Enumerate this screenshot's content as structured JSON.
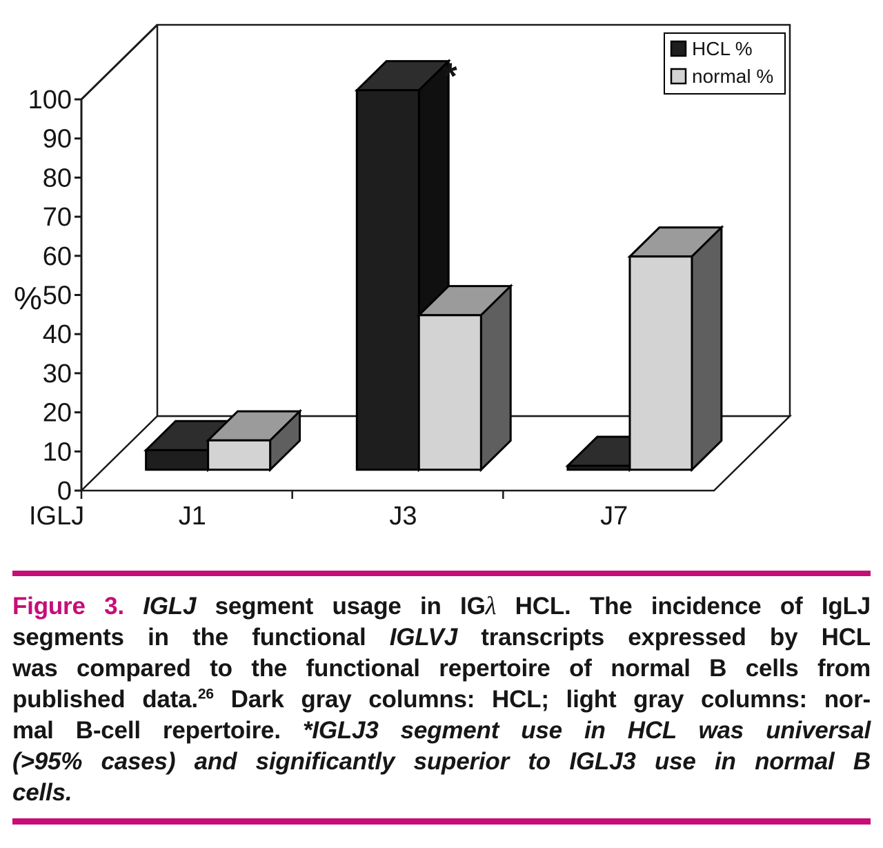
{
  "chart_data": {
    "type": "bar",
    "subtype": "3d-column",
    "title": "",
    "categories": [
      "J1",
      "J3",
      "J7"
    ],
    "series": [
      {
        "name": "HCL %",
        "values": [
          5,
          97,
          1
        ],
        "front": "#1e1e1e",
        "top": "#2d2d2d",
        "side": "#101010"
      },
      {
        "name": "normal %",
        "values": [
          7.5,
          39.5,
          54.5
        ],
        "front": "#d3d3d3",
        "top": "#9b9b9b",
        "side": "#5f5f5f"
      }
    ],
    "xlabel": "IGLJ",
    "ylabel": "%",
    "ylim": [
      0,
      100
    ],
    "ytick_step": 10,
    "yticks": [
      0,
      10,
      20,
      30,
      40,
      50,
      60,
      70,
      80,
      90,
      100
    ],
    "grid": false,
    "legend": {
      "position": "top-right",
      "entries": [
        "HCL %",
        "normal %"
      ]
    },
    "annotations": [
      {
        "text": "*",
        "category": "J3",
        "series": "HCL %"
      }
    ],
    "line_color": "#1a1a1a"
  },
  "caption": {
    "accent_color": "#c60d78",
    "lines": [
      {
        "runs": [
          {
            "t": "Figure 3. ",
            "s": "accent"
          },
          {
            "t": "IGLJ",
            "s": "bi"
          },
          {
            "t": " segment usage in IG",
            "s": "b"
          },
          {
            "t": "λ",
            "s": "lam"
          },
          {
            "t": " HCL. The incidence of IgLJ",
            "s": "b"
          }
        ]
      },
      {
        "runs": [
          {
            "t": "segments in the functional ",
            "s": "b"
          },
          {
            "t": "IGLVJ",
            "s": "bi"
          },
          {
            "t": " transcripts expressed by HCL",
            "s": "b"
          }
        ]
      },
      {
        "runs": [
          {
            "t": "was compared to the functional repertoire of normal B cells from",
            "s": "b"
          }
        ]
      },
      {
        "runs": [
          {
            "t": "published data.",
            "s": "b"
          },
          {
            "t": "26",
            "s": "sup"
          },
          {
            "t": " Dark gray columns: HCL; light gray columns: nor-",
            "s": "b"
          }
        ]
      },
      {
        "runs": [
          {
            "t": "mal B-cell repertoire. ",
            "s": "b"
          },
          {
            "t": "*IGLJ3 segment use in HCL was universal",
            "s": "bi"
          }
        ]
      },
      {
        "runs": [
          {
            "t": "(>95% cases) and significantly superior to IGLJ3 use in normal B",
            "s": "bi"
          }
        ]
      },
      {
        "runs": [
          {
            "t": "cells.",
            "s": "bi"
          }
        ]
      }
    ]
  }
}
